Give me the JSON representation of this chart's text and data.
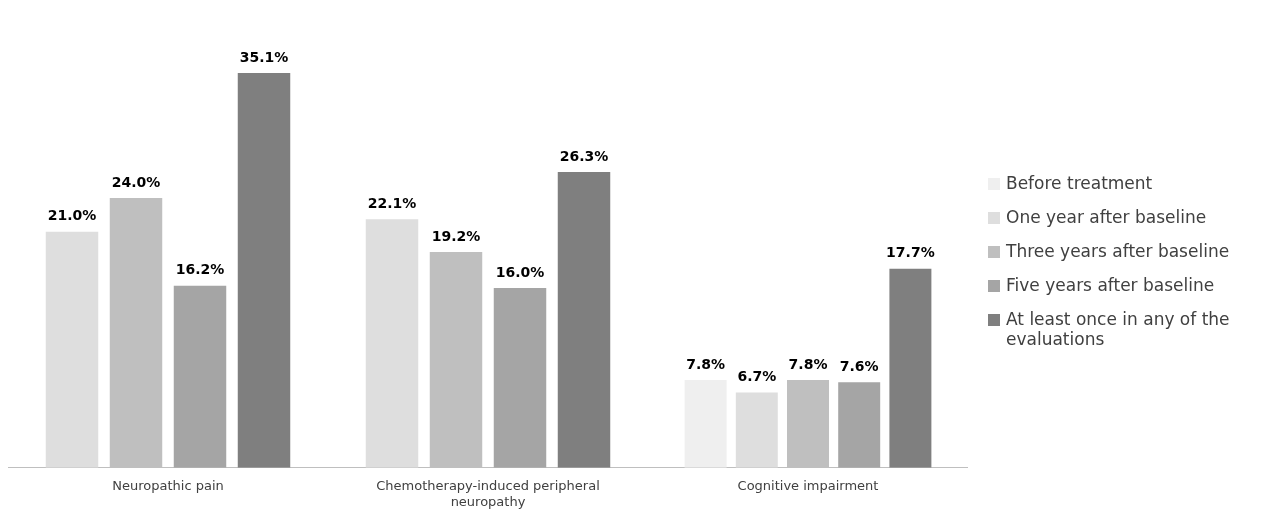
{
  "chart_data": {
    "type": "bar",
    "categories": [
      "Neuropathic pain",
      "Chemotherapy-induced peripheral neuropathy",
      "Cognitive impairment"
    ],
    "legend": "right",
    "series": [
      {
        "name": "Before treatment",
        "color": "#efefef",
        "values": [
          null,
          null,
          7.8
        ],
        "value_labels": [
          null,
          null,
          "7.8%"
        ]
      },
      {
        "name": "One year after baseline",
        "color": "#dedede",
        "values": [
          21.0,
          22.1,
          6.7
        ],
        "value_labels": [
          "21.0%",
          "22.1%",
          "6.7%"
        ]
      },
      {
        "name": "Three years after baseline",
        "color": "#bfbfbf",
        "values": [
          24.0,
          19.2,
          7.8
        ],
        "value_labels": [
          "24.0%",
          "19.2%",
          "7.8%"
        ]
      },
      {
        "name": "Five years after baseline",
        "color": "#a5a5a5",
        "values": [
          16.2,
          16.0,
          7.6
        ],
        "value_labels": [
          "16.2%",
          "16.0%",
          "7.6%"
        ]
      },
      {
        "name": "At least once in any of the evaluations",
        "color": "#7f7f7f",
        "values": [
          35.1,
          26.3,
          17.7
        ],
        "value_labels": [
          "35.1%",
          "26.3%",
          "17.7%"
        ]
      }
    ]
  }
}
